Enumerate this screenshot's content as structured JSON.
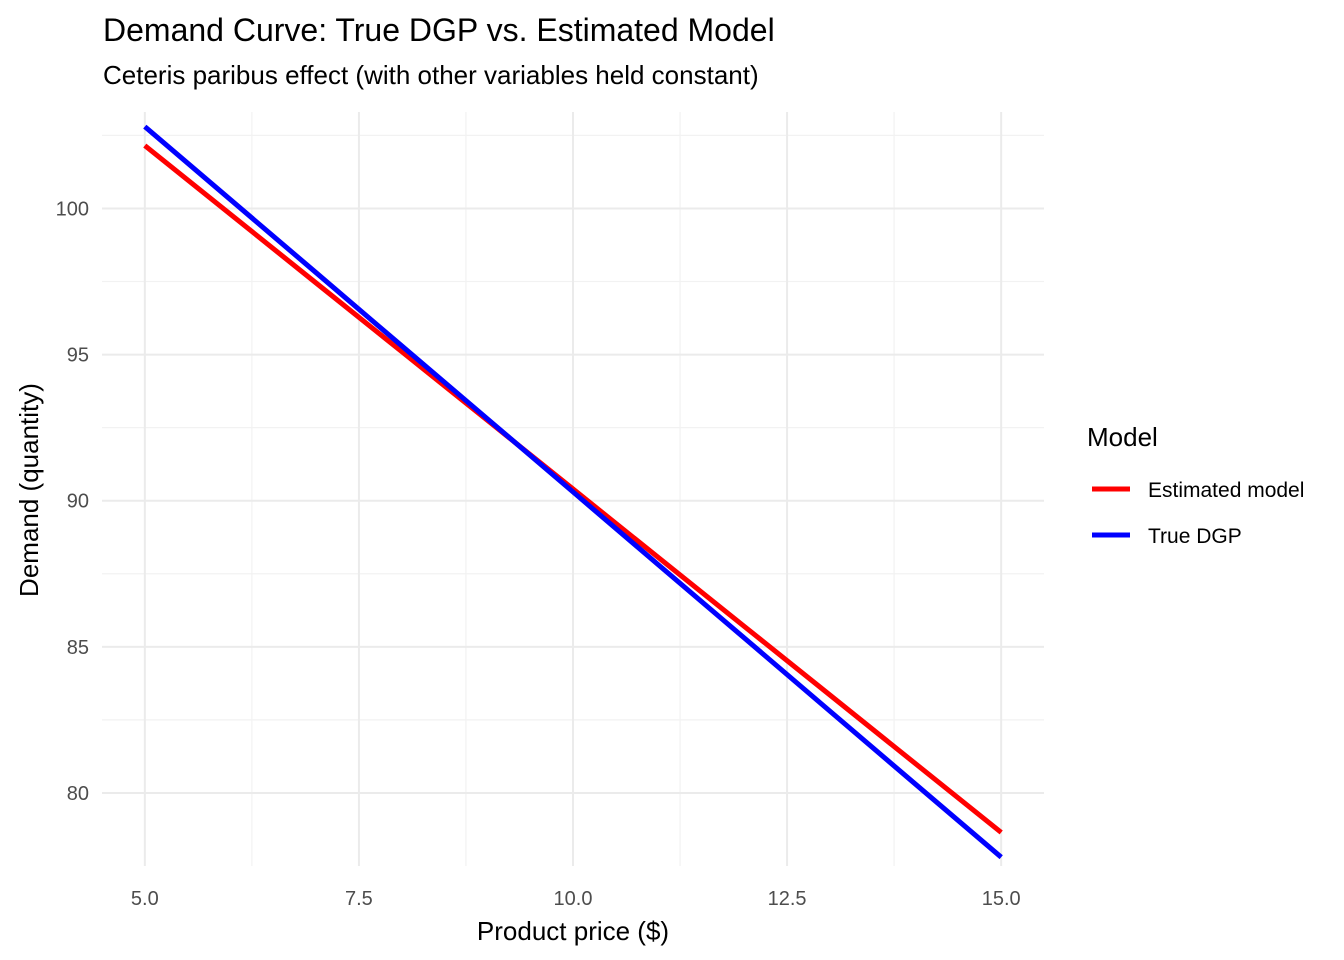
{
  "chart_data": {
    "type": "line",
    "title": "Demand Curve: True DGP vs. Estimated Model",
    "subtitle": "Ceteris paribus effect (with other variables held constant)",
    "xlabel": "Product price ($)",
    "ylabel": "Demand (quantity)",
    "xlim": [
      4.5,
      15.5
    ],
    "ylim": [
      77.5,
      103.3
    ],
    "x_ticks": [
      5.0,
      7.5,
      10.0,
      12.5,
      15.0
    ],
    "x_tick_labels": [
      "5.0",
      "7.5",
      "10.0",
      "12.5",
      "15.0"
    ],
    "y_ticks": [
      80,
      85,
      90,
      95,
      100
    ],
    "y_tick_labels": [
      "80",
      "85",
      "90",
      "95",
      "100"
    ],
    "grid": true,
    "legend": {
      "title": "Model",
      "placement": "right"
    },
    "series": [
      {
        "name": "Estimated model",
        "color": "#ff0000",
        "x": [
          5,
          6,
          7,
          8,
          9,
          10,
          11,
          12,
          13,
          14,
          15
        ],
        "y": [
          102.15,
          99.8,
          97.45,
          95.1,
          92.75,
          90.4,
          88.05,
          85.7,
          83.35,
          81.0,
          78.65
        ]
      },
      {
        "name": "True DGP",
        "color": "#0000ff",
        "x": [
          5,
          6,
          7,
          8,
          9,
          10,
          11,
          12,
          13,
          14,
          15
        ],
        "y": [
          102.8,
          100.3,
          97.8,
          95.3,
          92.8,
          90.3,
          87.8,
          85.3,
          82.8,
          80.3,
          77.8
        ]
      }
    ]
  }
}
